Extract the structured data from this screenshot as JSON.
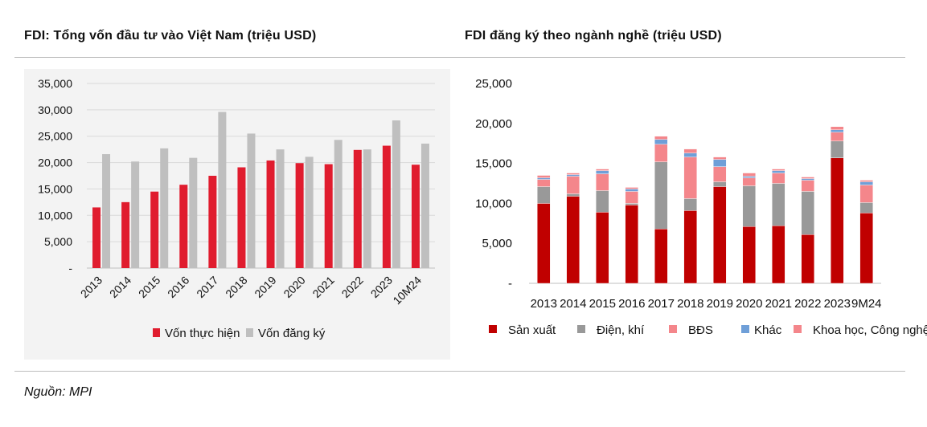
{
  "source_note": "Nguồn: MPI",
  "chart_data": [
    {
      "type": "bar",
      "title": "FDI: Tổng vốn đầu tư vào Việt Nam (triệu USD)",
      "categories": [
        "2013",
        "2014",
        "2015",
        "2016",
        "2017",
        "2018",
        "2019",
        "2020",
        "2021",
        "2022",
        "2023",
        "10M24"
      ],
      "series": [
        {
          "name": "Vốn thực hiện",
          "color": "#e01c2e",
          "values": [
            11500,
            12500,
            14500,
            15800,
            17500,
            19100,
            20400,
            19900,
            19700,
            22400,
            23200,
            19600
          ]
        },
        {
          "name": "Vốn đăng ký",
          "color": "#bfbfbf",
          "values": [
            21600,
            20200,
            22700,
            20900,
            29600,
            25500,
            22500,
            21100,
            24300,
            22500,
            28000,
            23600
          ]
        }
      ],
      "ylim": [
        0,
        35000
      ],
      "yticks": [
        "-",
        "5,000",
        "10,000",
        "15,000",
        "20,000",
        "25,000",
        "30,000",
        "35,000"
      ],
      "grid": true,
      "legend": "bottom"
    },
    {
      "type": "bar",
      "stacked": true,
      "title": "FDI đăng ký theo ngành nghề (triệu USD)",
      "categories": [
        "2013",
        "2014",
        "2015",
        "2016",
        "2017",
        "2018",
        "2019",
        "2020",
        "2021",
        "2022",
        "2023",
        "9M24"
      ],
      "series": [
        {
          "name": "Sản xuất",
          "color": "#c00000",
          "values": [
            10000,
            10900,
            8900,
            9800,
            6800,
            9100,
            12100,
            7100,
            7200,
            6100,
            15700,
            8800
          ]
        },
        {
          "name": "Điện, khí",
          "color": "#999999",
          "values": [
            2100,
            300,
            2700,
            200,
            8400,
            1500,
            600,
            5100,
            5300,
            5400,
            2100,
            1300
          ]
        },
        {
          "name": "BĐS",
          "color": "#f4868b",
          "values": [
            900,
            2200,
            2100,
            1500,
            2200,
            5200,
            1900,
            1000,
            1300,
            1400,
            1100,
            2200
          ]
        },
        {
          "name": "Khác",
          "color": "#6f9fd8",
          "values": [
            200,
            200,
            400,
            300,
            600,
            500,
            900,
            200,
            300,
            200,
            300,
            400
          ]
        },
        {
          "name": "Khoa học, Công nghệ",
          "color": "#f4868b",
          "values": [
            300,
            200,
            200,
            200,
            400,
            500,
            300,
            400,
            200,
            200,
            400,
            200
          ]
        }
      ],
      "ylim": [
        0,
        25000
      ],
      "yticks": [
        "-",
        "5,000",
        "10,000",
        "15,000",
        "20,000",
        "25,000"
      ],
      "grid": false,
      "legend": "bottom"
    }
  ]
}
